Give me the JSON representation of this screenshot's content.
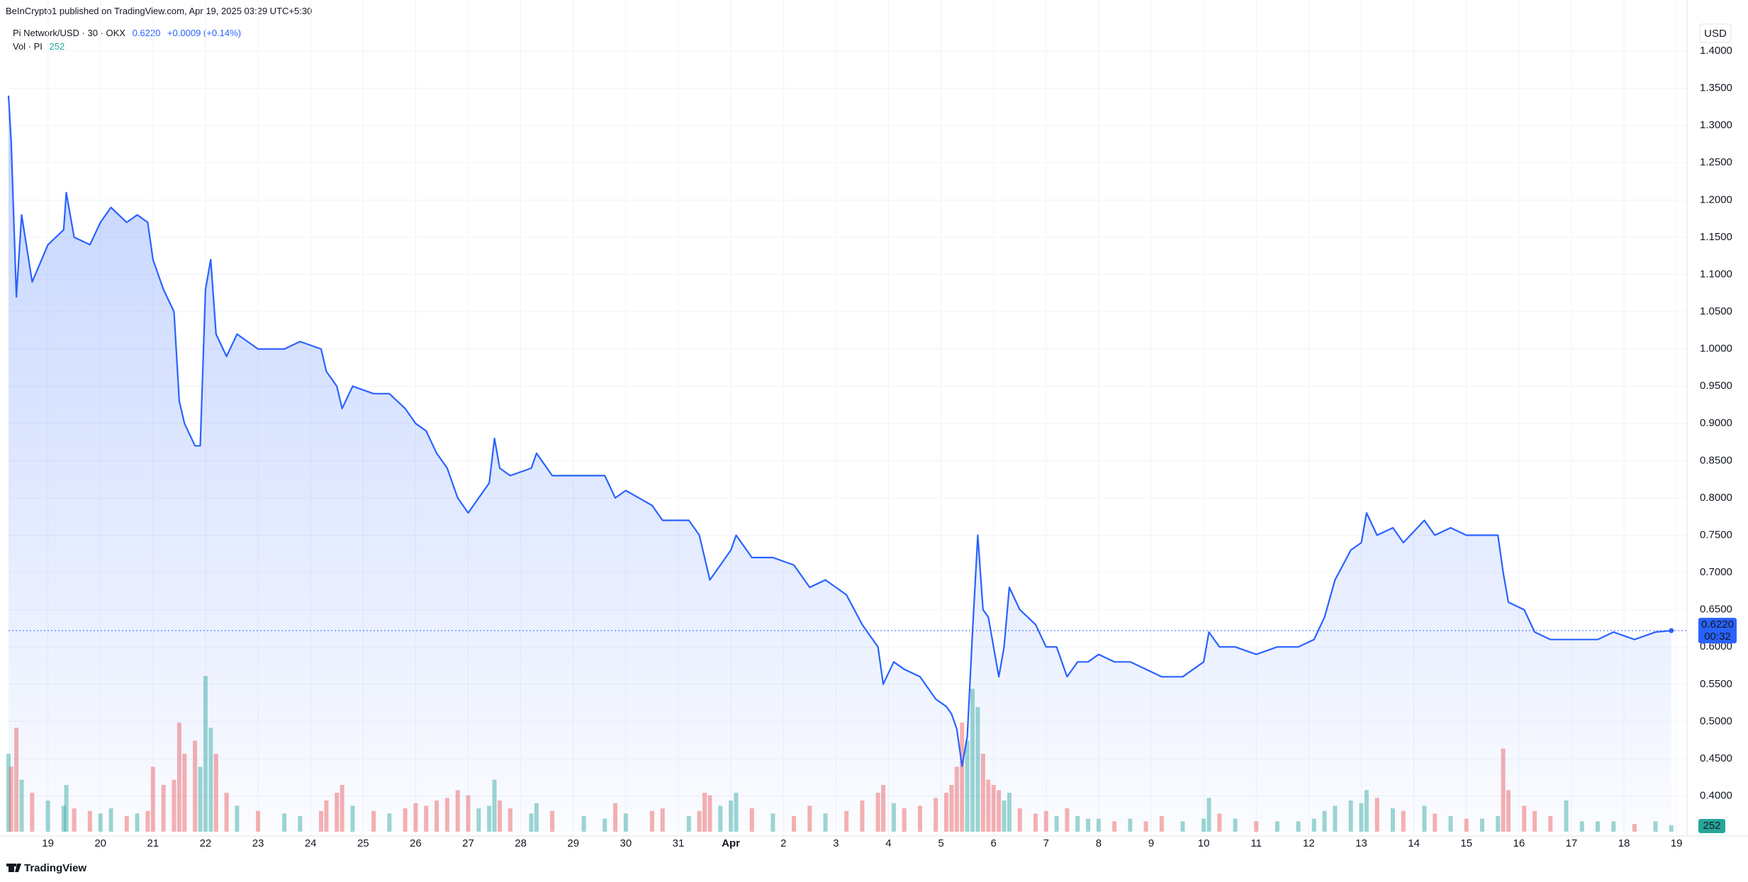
{
  "header": {
    "publisher": "BeInCrypto1 published on TradingView.com, Apr 19, 2025 03:29 UTC+5:30",
    "price": "0.6220",
    "change": "+0.0009 (+0.14%)",
    "currency": "USD",
    "countdown": "00:32",
    "brand": "TradingView"
  },
  "chart_data": {
    "type": "line",
    "x": [
      -0.75,
      -0.7,
      -0.6,
      -0.5,
      -0.3,
      0,
      0.3,
      0.35,
      0.5,
      0.8,
      1.0,
      1.2,
      1.5,
      1.7,
      1.9,
      2.0,
      2.2,
      2.4,
      2.5,
      2.6,
      2.8,
      2.9,
      3.0,
      3.1,
      3.2,
      3.4,
      3.6,
      4.0,
      4.5,
      4.8,
      5.2,
      5.3,
      5.5,
      5.6,
      5.8,
      6.2,
      6.5,
      6.8,
      7.0,
      7.2,
      7.4,
      7.6,
      7.8,
      8.0,
      8.2,
      8.4,
      8.5,
      8.6,
      8.8,
      9.2,
      9.3,
      9.6,
      10.2,
      10.6,
      10.8,
      11.0,
      11.5,
      11.7,
      12.2,
      12.4,
      12.5,
      12.6,
      12.8,
      13.0,
      13.1,
      13.4,
      13.8,
      14.2,
      14.5,
      14.8,
      15.2,
      15.5,
      15.8,
      15.9,
      16.1,
      16.3,
      16.6,
      16.9,
      17.1,
      17.2,
      17.3,
      17.4,
      17.5,
      17.6,
      17.7,
      17.8,
      17.9,
      18.0,
      18.1,
      18.2,
      18.3,
      18.5,
      18.8,
      19.0,
      19.2,
      19.4,
      19.6,
      19.8,
      20.0,
      20.3,
      20.6,
      20.9,
      21.2,
      21.6,
      22.0,
      22.1,
      22.3,
      22.6,
      23.0,
      23.4,
      23.8,
      24.1,
      24.3,
      24.5,
      24.8,
      25.0,
      25.1,
      25.3,
      25.6,
      25.8,
      26.2,
      26.4,
      26.7,
      27.0,
      27.3,
      27.6,
      27.7,
      27.8,
      28.1,
      28.3,
      28.6,
      28.9,
      29.2,
      29.5,
      29.8,
      30.2,
      30.6,
      30.9
    ],
    "xlim": [
      -0.75,
      31.2
    ],
    "xticks": [
      {
        "value": 0,
        "label": "19"
      },
      {
        "value": 1,
        "label": "20"
      },
      {
        "value": 2,
        "label": "21"
      },
      {
        "value": 3,
        "label": "22"
      },
      {
        "value": 4,
        "label": "23"
      },
      {
        "value": 5,
        "label": "24"
      },
      {
        "value": 6,
        "label": "25"
      },
      {
        "value": 7,
        "label": "26"
      },
      {
        "value": 8,
        "label": "27"
      },
      {
        "value": 9,
        "label": "28"
      },
      {
        "value": 10,
        "label": "29"
      },
      {
        "value": 11,
        "label": "30"
      },
      {
        "value": 12,
        "label": "31"
      },
      {
        "value": 13,
        "label": "Apr"
      },
      {
        "value": 14,
        "label": "2"
      },
      {
        "value": 15,
        "label": "3"
      },
      {
        "value": 16,
        "label": "4"
      },
      {
        "value": 17,
        "label": "5"
      },
      {
        "value": 18,
        "label": "6"
      },
      {
        "value": 19,
        "label": "7"
      },
      {
        "value": 20,
        "label": "8"
      },
      {
        "value": 21,
        "label": "9"
      },
      {
        "value": 22,
        "label": "10"
      },
      {
        "value": 23,
        "label": "11"
      },
      {
        "value": 24,
        "label": "12"
      },
      {
        "value": 25,
        "label": "13"
      },
      {
        "value": 26,
        "label": "14"
      },
      {
        "value": 27,
        "label": "15"
      },
      {
        "value": 28,
        "label": "16"
      },
      {
        "value": 29,
        "label": "17"
      },
      {
        "value": 30,
        "label": "18"
      },
      {
        "value": 31,
        "label": "19"
      }
    ],
    "ylim": [
      0.352,
      1.439
    ],
    "yticks": [
      {
        "value": 0.4,
        "label": "0.4000"
      },
      {
        "value": 0.45,
        "label": "0.4500"
      },
      {
        "value": 0.5,
        "label": "0.5000"
      },
      {
        "value": 0.55,
        "label": "0.5500"
      },
      {
        "value": 0.6,
        "label": "0.6000"
      },
      {
        "value": 0.65,
        "label": "0.6500"
      },
      {
        "value": 0.7,
        "label": "0.7000"
      },
      {
        "value": 0.75,
        "label": "0.7500"
      },
      {
        "value": 0.8,
        "label": "0.8000"
      },
      {
        "value": 0.85,
        "label": "0.8500"
      },
      {
        "value": 0.9,
        "label": "0.9000"
      },
      {
        "value": 0.95,
        "label": "0.9500"
      },
      {
        "value": 1.0,
        "label": "1.0000"
      },
      {
        "value": 1.05,
        "label": "1.0500"
      },
      {
        "value": 1.1,
        "label": "1.1000"
      },
      {
        "value": 1.15,
        "label": "1.1500"
      },
      {
        "value": 1.2,
        "label": "1.2000"
      },
      {
        "value": 1.25,
        "label": "1.2500"
      },
      {
        "value": 1.3,
        "label": "1.3000"
      },
      {
        "value": 1.35,
        "label": "1.3500"
      },
      {
        "value": 1.4,
        "label": "1.4000"
      }
    ],
    "grid": true,
    "series": [
      {
        "name": "Pi Network/USD · 30 · OKX",
        "color": "#2962ff",
        "values": [
          1.34,
          1.28,
          1.07,
          1.18,
          1.09,
          1.14,
          1.16,
          1.21,
          1.15,
          1.14,
          1.17,
          1.19,
          1.17,
          1.18,
          1.17,
          1.12,
          1.08,
          1.05,
          0.93,
          0.9,
          0.87,
          0.87,
          1.08,
          1.12,
          1.02,
          0.99,
          1.02,
          1.0,
          1.0,
          1.01,
          1.0,
          0.97,
          0.95,
          0.92,
          0.95,
          0.94,
          0.94,
          0.92,
          0.9,
          0.89,
          0.86,
          0.84,
          0.8,
          0.78,
          0.8,
          0.82,
          0.88,
          0.84,
          0.83,
          0.84,
          0.86,
          0.83,
          0.83,
          0.83,
          0.8,
          0.81,
          0.79,
          0.77,
          0.77,
          0.75,
          0.72,
          0.69,
          0.71,
          0.73,
          0.75,
          0.72,
          0.72,
          0.71,
          0.68,
          0.69,
          0.67,
          0.63,
          0.6,
          0.55,
          0.58,
          0.57,
          0.56,
          0.53,
          0.52,
          0.51,
          0.49,
          0.44,
          0.48,
          0.62,
          0.75,
          0.65,
          0.64,
          0.6,
          0.56,
          0.6,
          0.68,
          0.65,
          0.63,
          0.6,
          0.6,
          0.56,
          0.58,
          0.58,
          0.59,
          0.58,
          0.58,
          0.57,
          0.56,
          0.56,
          0.58,
          0.62,
          0.6,
          0.6,
          0.59,
          0.6,
          0.6,
          0.61,
          0.64,
          0.69,
          0.73,
          0.74,
          0.78,
          0.75,
          0.76,
          0.74,
          0.77,
          0.75,
          0.76,
          0.75,
          0.75,
          0.75,
          0.7,
          0.66,
          0.65,
          0.62,
          0.61,
          0.61,
          0.61,
          0.61,
          0.62,
          0.61,
          0.62,
          0.622
        ]
      },
      {
        "name": "Vol · PI",
        "type": "volume",
        "up_color": "#26a69a",
        "down_color": "#ef5350",
        "values": [
          3000,
          2500,
          4000,
          2000,
          1500,
          1200,
          1000,
          1800,
          900,
          800,
          700,
          900,
          600,
          700,
          800,
          2500,
          1800,
          2000,
          4200,
          3000,
          3500,
          2500,
          6000,
          4000,
          3000,
          1500,
          1000,
          800,
          700,
          600,
          800,
          1200,
          1500,
          1800,
          1000,
          800,
          700,
          900,
          1100,
          1000,
          1200,
          1300,
          1600,
          1400,
          900,
          1000,
          2000,
          1200,
          900,
          700,
          1100,
          800,
          600,
          500,
          1100,
          700,
          800,
          900,
          600,
          800,
          1500,
          1400,
          1000,
          1200,
          1500,
          900,
          700,
          600,
          1000,
          700,
          800,
          1200,
          1500,
          1800,
          1100,
          900,
          1000,
          1300,
          1500,
          1800,
          2500,
          4200,
          3500,
          5500,
          4800,
          3000,
          2000,
          1800,
          1600,
          1200,
          1500,
          900,
          700,
          800,
          600,
          900,
          600,
          500,
          500,
          400,
          500,
          400,
          600,
          400,
          500,
          1300,
          700,
          500,
          400,
          400,
          400,
          500,
          800,
          1000,
          1200,
          1100,
          1600,
          1300,
          900,
          800,
          1000,
          700,
          600,
          500,
          500,
          600,
          3200,
          1600,
          1000,
          800,
          600,
          1200,
          400,
          400,
          400,
          300,
          400,
          252
        ]
      }
    ]
  }
}
